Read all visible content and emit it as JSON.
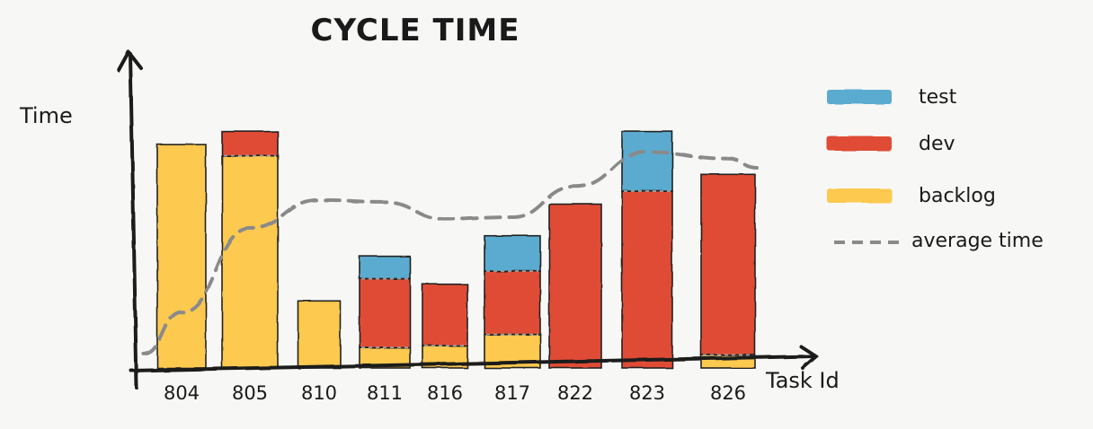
{
  "chart_data": {
    "type": "bar",
    "stacked": true,
    "title": "CYCLE TIME",
    "ylabel": "Time",
    "xlabel": "Task Id",
    "categories": [
      "804",
      "805",
      "810",
      "811",
      "816",
      "817",
      "822",
      "823",
      "826"
    ],
    "series": [
      {
        "name": "backlog",
        "color": "#fdc94f",
        "values": [
          240,
          228,
          72,
          22,
          24,
          36,
          0,
          0,
          14
        ]
      },
      {
        "name": "dev",
        "color": "#e04c35",
        "values": [
          0,
          26,
          0,
          74,
          66,
          68,
          176,
          190,
          194
        ]
      },
      {
        "name": "test",
        "color": "#5aabcf",
        "values": [
          0,
          0,
          0,
          24,
          0,
          38,
          0,
          64,
          0
        ]
      }
    ],
    "average_line": {
      "name": "average time",
      "color": "#8a8a8a",
      "style": "dashed",
      "values": [
        60,
        150,
        180,
        178,
        160,
        162,
        195,
        232,
        225
      ]
    },
    "ylim": [
      0,
      270
    ],
    "grid": false,
    "legend": "right"
  }
}
